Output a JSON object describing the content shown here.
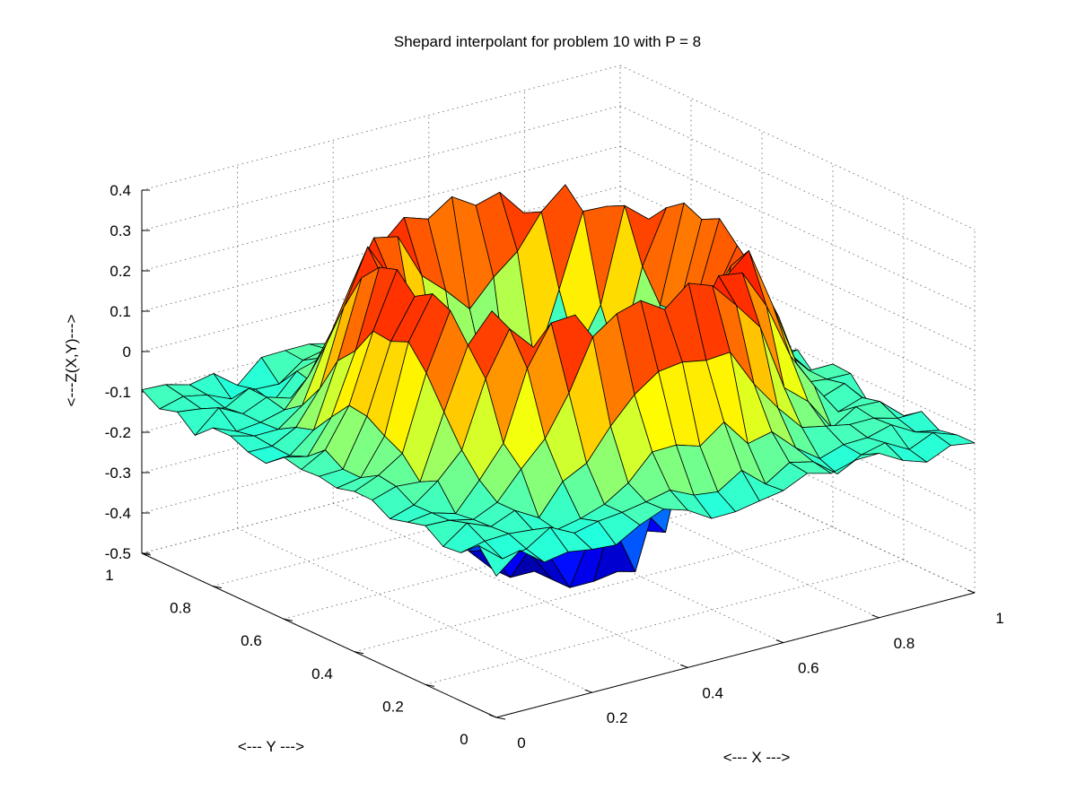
{
  "chart_data": {
    "type": "surface",
    "title": "Shepard interpolant for problem 10 with P = 8",
    "xlabel": "<--- X --->",
    "ylabel": "<--- Y --->",
    "zlabel": "<---Z(X,Y)--->",
    "xlim": [
      0,
      1
    ],
    "ylim": [
      0,
      1
    ],
    "zlim": [
      -0.5,
      0.4
    ],
    "x_ticks": [
      "0",
      "0.2",
      "0.4",
      "0.6",
      "0.8",
      "1"
    ],
    "y_ticks": [
      "0",
      "0.2",
      "0.4",
      "0.6",
      "0.8",
      "1"
    ],
    "z_ticks": [
      "-0.5",
      "-0.4",
      "-0.3",
      "-0.2",
      "-0.1",
      "0",
      "0.1",
      "0.2",
      "0.3",
      "0.4"
    ],
    "grid": true,
    "colormap": "jet",
    "surface_shape": "ring-shaped rim near z ≈ 0.2–0.3 around a central depression reaching z ≈ -0.5, corners near z ≈ -0.1"
  }
}
